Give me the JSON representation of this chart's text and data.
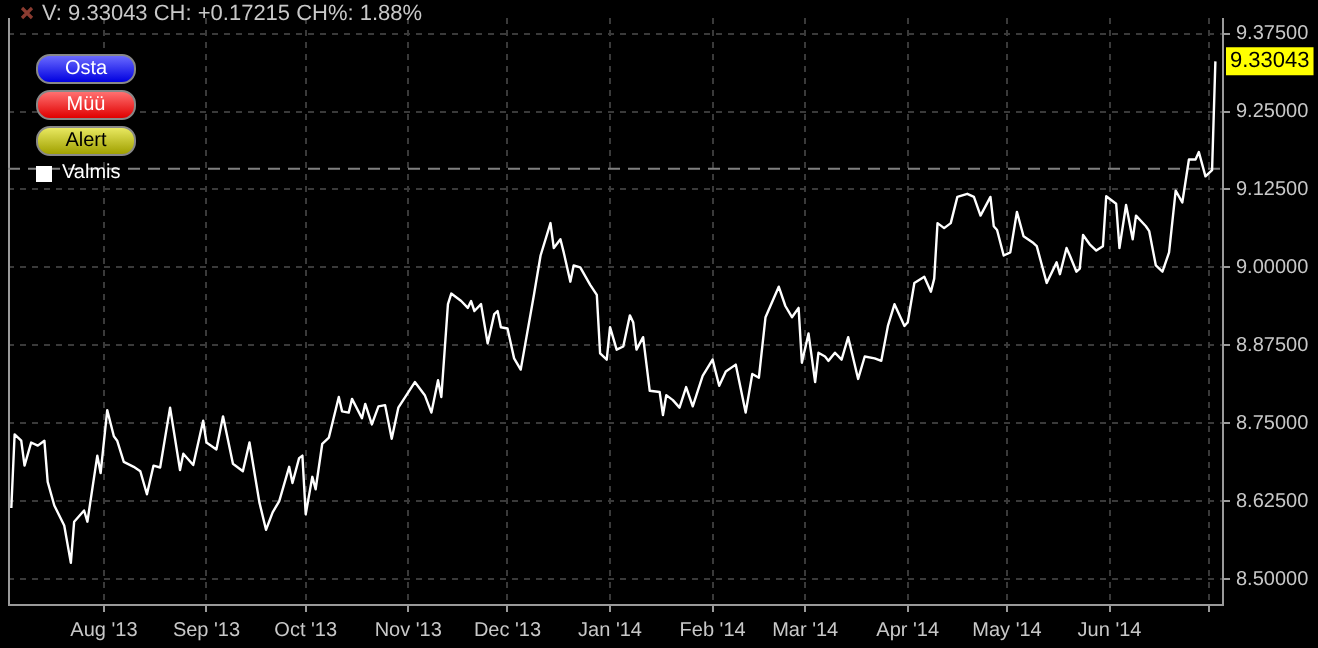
{
  "chart_data": {
    "type": "line",
    "annotations": [
      "V: 9.33043 CH: +0.17215 CH%: 1.88%",
      "Osta",
      "Müü",
      "Alert",
      "Valmis",
      {
        "text": "9.33043",
        "x": "2014-07-03",
        "y": 9.33043
      }
    ],
    "x": [
      "2013-07-04",
      "2013-07-05",
      "2013-07-07",
      "2013-07-08",
      "2013-07-10",
      "2013-07-12",
      "2013-07-14",
      "2013-07-15",
      "2013-07-17",
      "2013-07-20",
      "2013-07-22",
      "2013-07-23",
      "2013-07-26",
      "2013-07-27",
      "2013-07-30",
      "2013-07-31",
      "2013-08-02",
      "2013-08-04",
      "2013-08-05",
      "2013-08-07",
      "2013-08-10",
      "2013-08-12",
      "2013-08-14",
      "2013-08-16",
      "2013-08-18",
      "2013-08-21",
      "2013-08-24",
      "2013-08-25",
      "2013-08-28",
      "2013-08-31",
      "2013-09-01",
      "2013-09-04",
      "2013-09-06",
      "2013-09-09",
      "2013-09-12",
      "2013-09-14",
      "2013-09-17",
      "2013-09-19",
      "2013-09-21",
      "2013-09-23",
      "2013-09-26",
      "2013-09-27",
      "2013-09-29",
      "2013-09-30",
      "2013-10-01",
      "2013-10-03",
      "2013-10-04",
      "2013-10-06",
      "2013-10-08",
      "2013-10-11",
      "2013-10-12",
      "2013-10-14",
      "2013-10-15",
      "2013-10-18",
      "2013-10-19",
      "2013-10-21",
      "2013-10-23",
      "2013-10-25",
      "2013-10-27",
      "2013-10-29",
      "2013-11-03",
      "2013-11-06",
      "2013-11-08",
      "2013-11-10",
      "2013-11-11",
      "2013-11-13",
      "2013-11-14",
      "2013-11-17",
      "2013-11-19",
      "2013-11-20",
      "2013-11-21",
      "2013-11-23",
      "2013-11-25",
      "2013-11-27",
      "2013-11-28",
      "2013-11-29",
      "2013-12-01",
      "2013-12-03",
      "2013-12-05",
      "2013-12-09",
      "2013-12-11",
      "2013-12-14",
      "2013-12-15",
      "2013-12-17",
      "2013-12-18",
      "2013-12-20",
      "2013-12-21",
      "2013-12-23",
      "2013-12-26",
      "2013-12-28",
      "2013-12-29",
      "2013-12-31",
      "2014-01-01",
      "2014-01-03",
      "2014-01-05",
      "2014-01-07",
      "2014-01-08",
      "2014-01-09",
      "2014-01-11",
      "2014-01-13",
      "2014-01-16",
      "2014-01-17",
      "2014-01-18",
      "2014-01-20",
      "2014-01-22",
      "2014-01-24",
      "2014-01-26",
      "2014-01-29",
      "2014-02-01",
      "2014-02-03",
      "2014-02-05",
      "2014-02-08",
      "2014-02-11",
      "2014-02-13",
      "2014-02-15",
      "2014-02-17",
      "2014-02-21",
      "2014-02-23",
      "2014-02-25",
      "2014-02-27",
      "2014-02-28",
      "2014-03-02",
      "2014-03-04",
      "2014-03-05",
      "2014-03-07",
      "2014-03-08",
      "2014-03-10",
      "2014-03-12",
      "2014-03-14",
      "2014-03-17",
      "2014-03-19",
      "2014-03-22",
      "2014-03-24",
      "2014-03-26",
      "2014-03-28",
      "2014-03-31",
      "2014-04-01",
      "2014-04-03",
      "2014-04-06",
      "2014-04-08",
      "2014-04-09",
      "2014-04-10",
      "2014-04-12",
      "2014-04-14",
      "2014-04-16",
      "2014-04-19",
      "2014-04-21",
      "2014-04-23",
      "2014-04-26",
      "2014-04-27",
      "2014-04-28",
      "2014-04-30",
      "2014-05-02",
      "2014-05-04",
      "2014-05-06",
      "2014-05-09",
      "2014-05-10",
      "2014-05-13",
      "2014-05-16",
      "2014-05-17",
      "2014-05-19",
      "2014-05-20",
      "2014-05-22",
      "2014-05-23",
      "2014-05-24",
      "2014-05-26",
      "2014-05-28",
      "2014-05-30",
      "2014-05-31",
      "2014-06-03",
      "2014-06-04",
      "2014-06-06",
      "2014-06-08",
      "2014-06-09",
      "2014-06-12",
      "2014-06-13",
      "2014-06-15",
      "2014-06-17",
      "2014-06-19",
      "2014-06-21",
      "2014-06-23",
      "2014-06-25",
      "2014-06-27",
      "2014-06-28",
      "2014-06-30",
      "2014-07-02",
      "2014-07-03"
    ],
    "series": [
      {
        "color": "#ffffff",
        "values": [
          8.614,
          8.732,
          8.722,
          8.682,
          8.719,
          8.714,
          8.722,
          8.656,
          8.618,
          8.586,
          8.526,
          8.592,
          8.61,
          8.592,
          8.698,
          8.67,
          8.771,
          8.729,
          8.722,
          8.688,
          8.68,
          8.673,
          8.636,
          8.682,
          8.679,
          8.775,
          8.675,
          8.701,
          8.683,
          8.754,
          8.719,
          8.708,
          8.761,
          8.685,
          8.673,
          8.719,
          8.623,
          8.579,
          8.607,
          8.625,
          8.68,
          8.654,
          8.694,
          8.698,
          8.604,
          8.664,
          8.644,
          8.717,
          8.727,
          8.792,
          8.769,
          8.767,
          8.789,
          8.758,
          8.781,
          8.748,
          8.777,
          8.779,
          8.725,
          8.775,
          8.816,
          8.795,
          8.767,
          8.819,
          8.792,
          8.941,
          8.958,
          8.946,
          8.935,
          8.946,
          8.93,
          8.941,
          8.878,
          8.925,
          8.93,
          8.904,
          8.902,
          8.854,
          8.836,
          8.956,
          9.019,
          9.071,
          9.031,
          9.045,
          9.024,
          8.977,
          9.003,
          9.0,
          8.972,
          8.956,
          8.862,
          8.852,
          8.904,
          8.868,
          8.873,
          8.923,
          8.912,
          8.868,
          8.888,
          8.802,
          8.8,
          8.763,
          8.795,
          8.787,
          8.775,
          8.808,
          8.777,
          8.826,
          8.852,
          8.81,
          8.833,
          8.844,
          8.767,
          8.829,
          8.823,
          8.92,
          8.969,
          8.938,
          8.92,
          8.935,
          8.847,
          8.894,
          8.816,
          8.863,
          8.857,
          8.85,
          8.863,
          8.852,
          8.888,
          8.821,
          8.857,
          8.854,
          8.85,
          8.906,
          8.941,
          8.906,
          8.912,
          8.975,
          8.985,
          8.961,
          8.982,
          9.071,
          9.063,
          9.071,
          9.113,
          9.118,
          9.113,
          9.083,
          9.113,
          9.066,
          9.06,
          9.019,
          9.024,
          9.089,
          9.05,
          9.039,
          9.034,
          8.975,
          9.008,
          8.989,
          9.031,
          9.019,
          8.993,
          8.998,
          9.052,
          9.037,
          9.027,
          9.034,
          9.114,
          9.102,
          9.031,
          9.1,
          9.045,
          9.083,
          9.066,
          9.058,
          9.003,
          8.993,
          9.024,
          9.123,
          9.104,
          9.173,
          9.173,
          9.185,
          9.146,
          9.156,
          9.33043
        ]
      }
    ],
    "xlim": [
      "2013-07-03",
      "2014-07-05"
    ],
    "xticks": [
      {
        "value": "2013-08-01",
        "label": "Aug '13"
      },
      {
        "value": "2013-09-01",
        "label": "Sep '13"
      },
      {
        "value": "2013-10-01",
        "label": "Oct '13"
      },
      {
        "value": "2013-11-01",
        "label": "Nov '13"
      },
      {
        "value": "2013-12-01",
        "label": "Dec '13"
      },
      {
        "value": "2014-01-01",
        "label": "Jan '14"
      },
      {
        "value": "2014-02-01",
        "label": "Feb '14"
      },
      {
        "value": "2014-03-01",
        "label": "Mar '14"
      },
      {
        "value": "2014-04-01",
        "label": "Apr '14"
      },
      {
        "value": "2014-05-01",
        "label": "May '14"
      },
      {
        "value": "2014-06-01",
        "label": "Jun '14"
      },
      {
        "value": "2014-07-01",
        "label": null
      }
    ],
    "ylim": [
      8.46,
      9.4
    ],
    "yticks": [
      {
        "value": 8.5,
        "label": "8.50000"
      },
      {
        "value": 8.625,
        "label": "8.62500"
      },
      {
        "value": 8.75,
        "label": "8.75000"
      },
      {
        "value": 8.875,
        "label": "8.87500"
      },
      {
        "value": 9.0,
        "label": "9.00000"
      },
      {
        "value": 9.125,
        "label": "9.12500"
      },
      {
        "value": 9.25,
        "label": "9.25000"
      },
      {
        "value": 9.375,
        "label": "9.37500"
      }
    ],
    "ref_lines": [
      {
        "axis": "y",
        "value": 9.15828,
        "color": "#808080",
        "line_style": "dashed"
      }
    ],
    "grid": true,
    "legend": false,
    "marker": "none",
    "line_style": "solid"
  }
}
